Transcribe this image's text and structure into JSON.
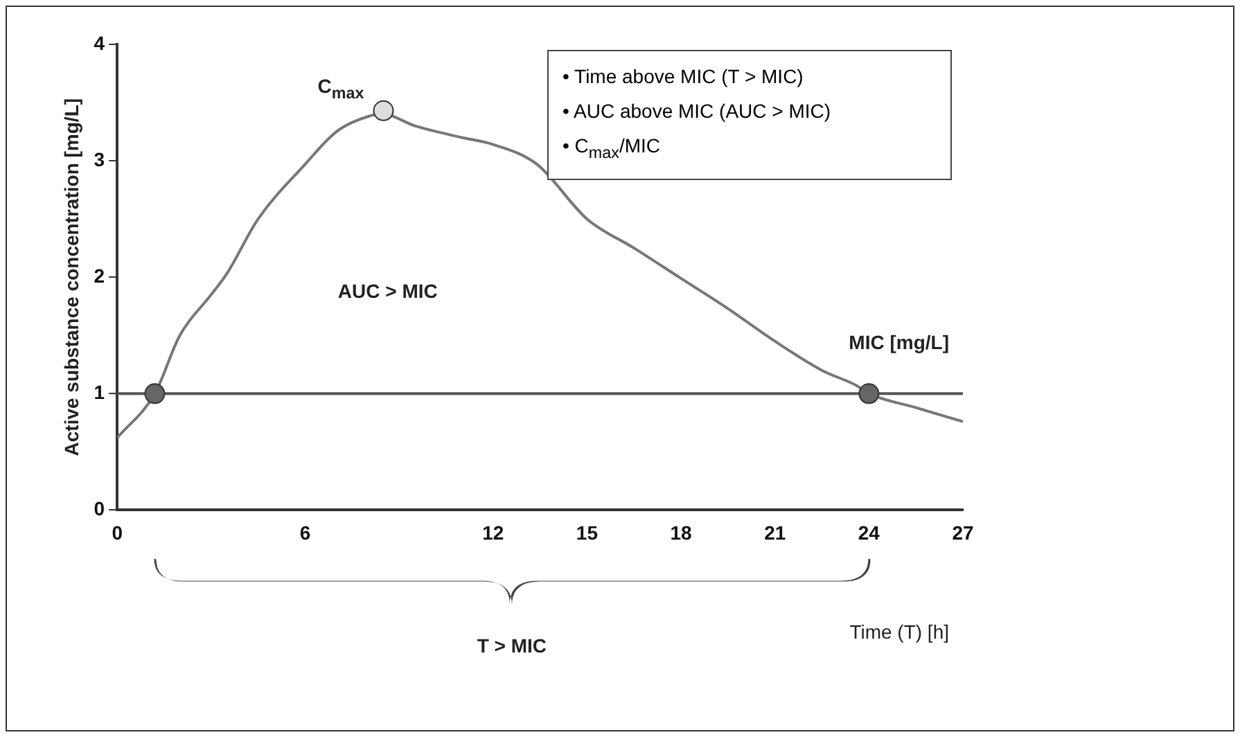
{
  "chart_data": {
    "type": "line",
    "ylabel": "Active substance concentration [mg/L]",
    "xlabel": "Time (T) [h]",
    "xlim": [
      0,
      27
    ],
    "xticks": [
      0,
      6,
      12,
      15,
      18,
      21,
      24,
      27
    ],
    "ylim": [
      0,
      4
    ],
    "yticks": [
      0,
      1,
      2,
      3,
      4
    ],
    "series": [
      {
        "color": "#777777",
        "marker": "none",
        "x": [
          0,
          1.2,
          2,
          3,
          3.5,
          4.5,
          6,
          7,
          8,
          8.5,
          9.5,
          11,
          12,
          13.4,
          15,
          16.5,
          18,
          19.5,
          21,
          22.5,
          23.6,
          24,
          25.5,
          27
        ],
        "values": [
          0.62,
          1.0,
          1.5,
          1.85,
          2.03,
          2.5,
          2.97,
          3.25,
          3.38,
          3.4,
          3.3,
          3.2,
          3.14,
          2.97,
          2.5,
          2.25,
          1.99,
          1.73,
          1.45,
          1.2,
          1.07,
          1.0,
          0.88,
          0.76
        ]
      },
      {
        "type": "scatter",
        "color": "#666666",
        "marker": "circle",
        "x": [
          1.2,
          24
        ],
        "values": [
          1,
          1
        ]
      },
      {
        "type": "scatter",
        "color": "#dddddd",
        "marker": "circle",
        "x": [
          8.5
        ],
        "values": [
          3.43
        ]
      }
    ],
    "ref_lines": [
      {
        "axis": "y",
        "value": 1,
        "label": "MIC [mg/L]",
        "color": "#555555"
      }
    ],
    "annotations": [
      {
        "text": "C$_{max}$",
        "x": 8.5,
        "y": 3.43
      },
      "AUC > MIC",
      "• Time above MIC (T > MIC)",
      "• AUC above MIC (AUC > MIC)",
      "• C$_{max}$/MIC",
      "T > MIC"
    ],
    "grid": false,
    "legend": false
  }
}
